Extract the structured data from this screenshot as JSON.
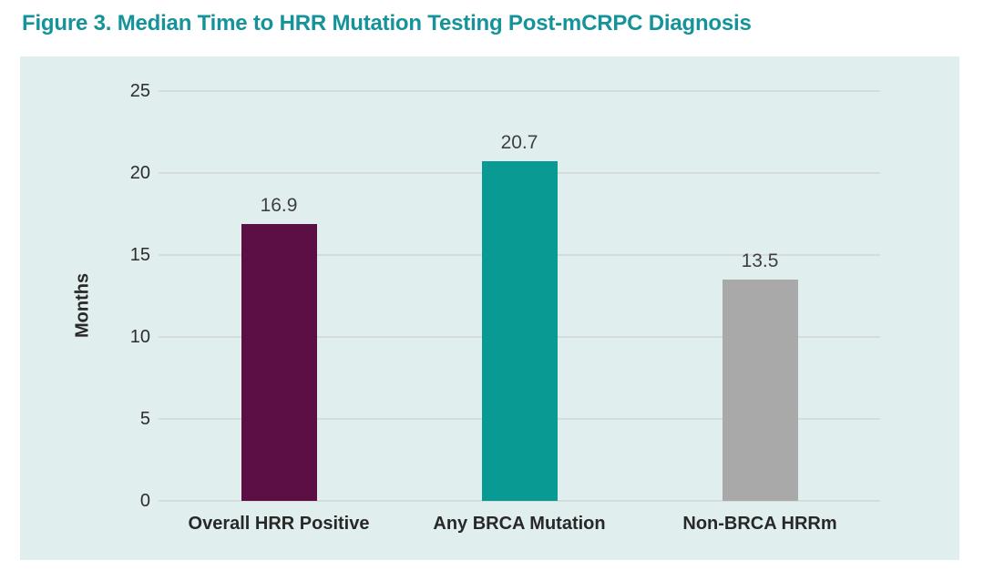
{
  "page": {
    "title": "Figure 3. Median Time to HRR Mutation Testing Post-mCRPC Diagnosis"
  },
  "colors": {
    "title_text": "#15939A",
    "panel_background": "#E0EFED",
    "gridline": "#D6DCDB",
    "tick_text": "#2D2D2D",
    "data_label_text": "#3F3F3F",
    "category_text": "#282828",
    "bar_overall_hrr_positive": "#5C0F45",
    "bar_any_brca_mutation": "#0A9A94",
    "bar_non_brca_hrrm": "#A9A9A9"
  },
  "chart_data": {
    "type": "bar",
    "title": "Figure 3. Median Time to HRR Mutation Testing Post-mCRPC Diagnosis",
    "categories": [
      "Overall HRR Positive",
      "Any BRCA Mutation",
      "Non-BRCA HRRm"
    ],
    "values": [
      16.9,
      20.7,
      13.5
    ],
    "data_labels": [
      "16.9",
      "20.7",
      "13.5"
    ],
    "bar_colors": [
      "#5C0F45",
      "#0A9A94",
      "#A9A9A9"
    ],
    "xlabel": "",
    "ylabel": "Months",
    "ylim": [
      0,
      25
    ],
    "yticks": [
      0,
      5,
      10,
      15,
      20,
      25
    ],
    "grid": true,
    "legend_position": "none"
  }
}
